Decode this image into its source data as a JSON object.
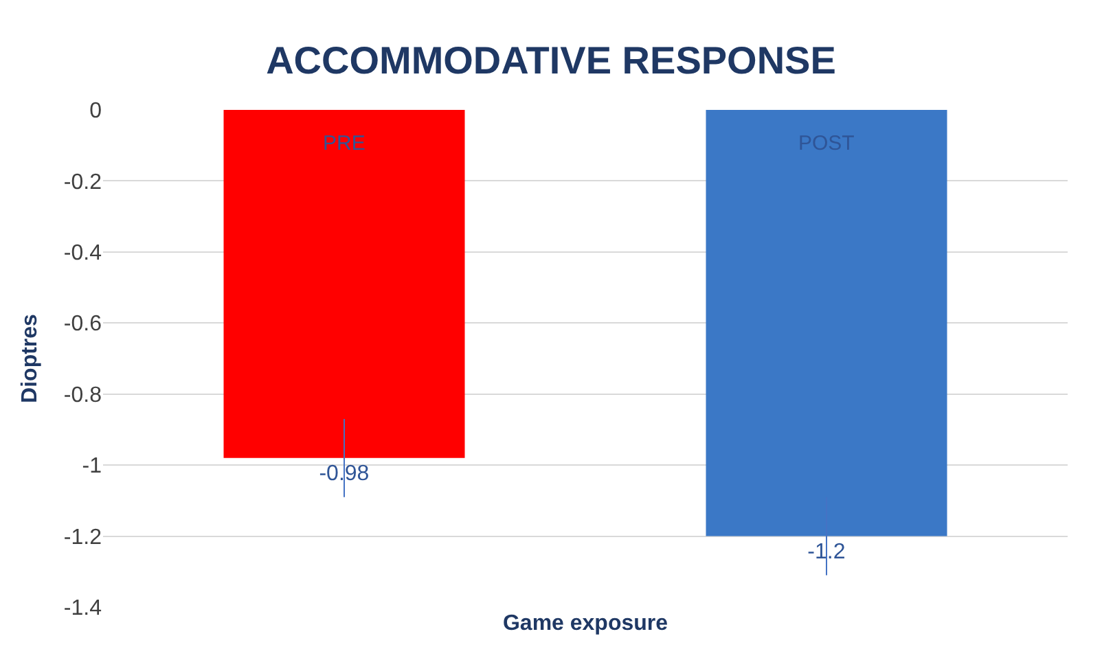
{
  "chart_data": {
    "type": "bar",
    "title": "ACCOMMODATIVE RESPONSE",
    "xlabel": "Game exposure",
    "ylabel": "Dioptres",
    "categories": [
      "PRE",
      "POST"
    ],
    "values": [
      -0.98,
      -1.2
    ],
    "colors": [
      "#ff0000",
      "#3b78c6"
    ],
    "errors": [
      0.11,
      0.11
    ],
    "data_labels": true,
    "ylim": [
      -1.4,
      0
    ],
    "yticks": [
      0,
      -0.2,
      -0.4,
      -0.6,
      -0.8,
      -1,
      -1.2,
      -1.4
    ],
    "grid": "y"
  }
}
